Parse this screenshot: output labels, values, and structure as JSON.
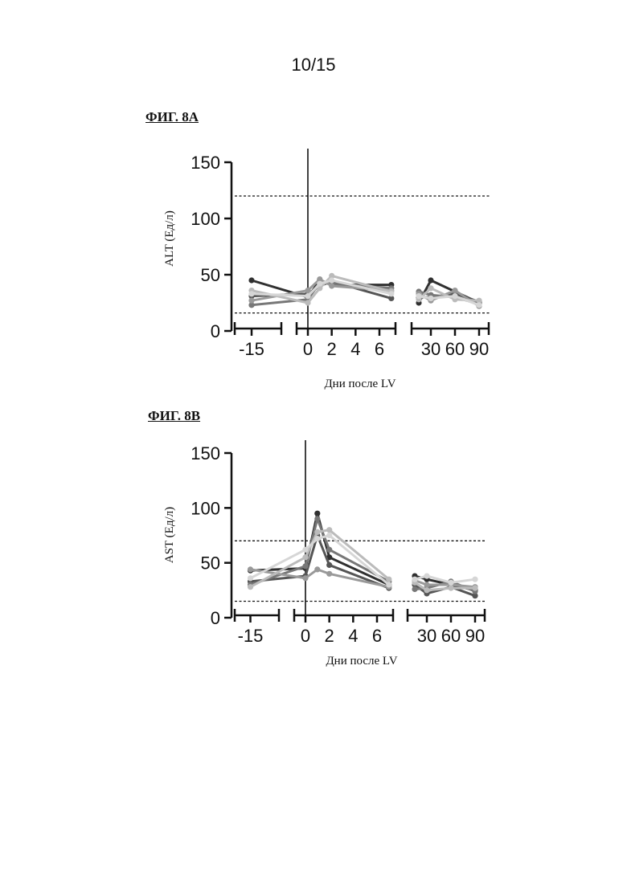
{
  "page": {
    "number": "10/15"
  },
  "chart_data": [
    {
      "figure_label": "ФИГ. 8А",
      "type": "line",
      "ylabel": "ALT (Ед/л)",
      "xlabel": "Дни после LV",
      "ylim": [
        0,
        150
      ],
      "yticks": [
        0,
        50,
        100,
        150
      ],
      "x_segments": [
        {
          "ticks": [
            -15
          ],
          "tick_labels": [
            "-15"
          ]
        },
        {
          "ticks": [
            0,
            2,
            4,
            6
          ],
          "tick_labels": [
            "0",
            "2",
            "4",
            "6"
          ]
        },
        {
          "ticks": [
            30,
            60,
            90
          ],
          "tick_labels": [
            "30",
            "60",
            "90"
          ]
        }
      ],
      "reference_lines": [
        120,
        16
      ],
      "vertical_line_x": 0,
      "series": [
        {
          "color": "#303030",
          "values": {
            "-15": 45,
            "0": 30,
            "1": 45,
            "2": 41,
            "7": 41,
            "15": 25,
            "30": 45,
            "60": 35,
            "90": 25
          }
        },
        {
          "color": "#555555",
          "values": {
            "-15": 31,
            "0": 33,
            "1": 40,
            "2": 44,
            "7": 29,
            "15": 30,
            "30": 30,
            "60": 33,
            "90": 26
          }
        },
        {
          "color": "#777777",
          "values": {
            "-15": 23,
            "0": 28,
            "1": 43,
            "2": 42,
            "7": 38,
            "15": 35,
            "30": 32,
            "60": 30,
            "90": 24
          }
        },
        {
          "color": "#999999",
          "values": {
            "-15": 27,
            "0": 36,
            "1": 46,
            "2": 40,
            "7": 36,
            "15": 33,
            "30": 27,
            "60": 36,
            "90": 22
          }
        },
        {
          "color": "#bbbbbb",
          "values": {
            "-15": 36,
            "0": 25,
            "1": 38,
            "2": 49,
            "7": 35,
            "15": 28,
            "30": 38,
            "60": 28,
            "90": 27
          }
        },
        {
          "color": "#d6d6d6",
          "values": {
            "-15": 33,
            "0": 31,
            "1": 42,
            "2": 45,
            "7": 33,
            "15": 31,
            "30": 29,
            "60": 31,
            "90": 23
          }
        }
      ]
    },
    {
      "figure_label": "ФИГ. 8В",
      "type": "line",
      "ylabel": "AST (Ед/л)",
      "xlabel": "Дни после LV",
      "ylim": [
        0,
        150
      ],
      "yticks": [
        0,
        50,
        100,
        150
      ],
      "x_segments": [
        {
          "ticks": [
            -15
          ],
          "tick_labels": [
            "-15"
          ]
        },
        {
          "ticks": [
            0,
            2,
            4,
            6
          ],
          "tick_labels": [
            "0",
            "2",
            "4",
            "6"
          ]
        },
        {
          "ticks": [
            30,
            60,
            90
          ],
          "tick_labels": [
            "30",
            "60",
            "90"
          ]
        }
      ],
      "reference_lines": [
        70,
        15
      ],
      "vertical_line_x": 0,
      "series": [
        {
          "color": "#303030",
          "values": {
            "-15": 43,
            "0": 45,
            "1": 95,
            "2": 55,
            "7": 30,
            "15": 38,
            "30": 35,
            "60": 30,
            "90": 25
          }
        },
        {
          "color": "#555555",
          "values": {
            "-15": 33,
            "0": 38,
            "1": 75,
            "2": 48,
            "7": 27,
            "15": 30,
            "30": 22,
            "60": 28,
            "90": 20
          }
        },
        {
          "color": "#777777",
          "values": {
            "-15": 30,
            "0": 47,
            "1": 90,
            "2": 62,
            "7": 33,
            "15": 26,
            "30": 27,
            "60": 33,
            "90": 24
          }
        },
        {
          "color": "#999999",
          "values": {
            "-15": 44,
            "0": 36,
            "1": 44,
            "2": 40,
            "7": 28,
            "15": 34,
            "30": 30,
            "60": 30,
            "90": 28
          }
        },
        {
          "color": "#bbbbbb",
          "values": {
            "-15": 28,
            "0": 55,
            "1": 78,
            "2": 80,
            "7": 35,
            "15": 32,
            "30": 25,
            "60": 27,
            "90": 27
          }
        },
        {
          "color": "#d6d6d6",
          "values": {
            "-15": 36,
            "0": 62,
            "1": 72,
            "2": 75,
            "7": 30,
            "15": 35,
            "30": 38,
            "60": 32,
            "90": 35
          }
        }
      ]
    }
  ]
}
